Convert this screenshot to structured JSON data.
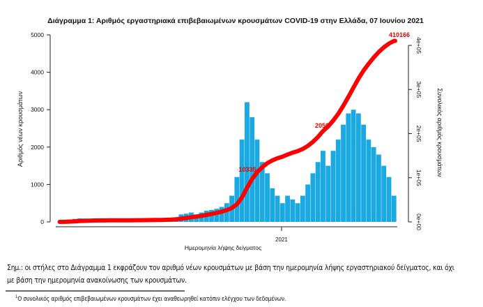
{
  "chart_data": {
    "type": "bar+line",
    "title": "Διάγραμμα 1: Αριθμός εργαστηριακά επιβεβαιωμένων κρουσμάτων COVID-19 στην Ελλάδα, 07 Ιουνίου 2021",
    "xlabel": "Ημερομηνία λήψης δείγματος",
    "ylabel_left": "Αριθμός νέων κρουσμάτων",
    "ylabel_right": "Συνολικός αριθμός κρουσμάτων",
    "x_ticks": [
      "2021"
    ],
    "y_left_ticks": [
      "0",
      "1000",
      "2000",
      "3000",
      "4000",
      "5000"
    ],
    "y_right_ticks": [
      "0e+00",
      "1e+05",
      "2e+05",
      "3e+05",
      "4e+05"
    ],
    "ylim_left": [
      0,
      5000
    ],
    "ylim_right": [
      0,
      400000
    ],
    "xlim": [
      "2020-02-26",
      "2021-06-07"
    ],
    "bar_color": "#1aa9e0",
    "line_color": "#ff0000",
    "dates": [
      "2020-02-26",
      "2020-03-04",
      "2020-03-11",
      "2020-03-18",
      "2020-03-25",
      "2020-04-01",
      "2020-04-08",
      "2020-04-15",
      "2020-04-22",
      "2020-04-29",
      "2020-05-06",
      "2020-05-13",
      "2020-05-20",
      "2020-05-27",
      "2020-06-03",
      "2020-06-10",
      "2020-06-17",
      "2020-06-24",
      "2020-07-01",
      "2020-07-08",
      "2020-07-15",
      "2020-07-22",
      "2020-07-29",
      "2020-08-05",
      "2020-08-12",
      "2020-08-19",
      "2020-08-26",
      "2020-09-02",
      "2020-09-09",
      "2020-09-16",
      "2020-09-23",
      "2020-09-30",
      "2020-10-07",
      "2020-10-14",
      "2020-10-21",
      "2020-10-28",
      "2020-11-04",
      "2020-11-11",
      "2020-11-18",
      "2020-11-25",
      "2020-12-02",
      "2020-12-09",
      "2020-12-16",
      "2020-12-23",
      "2020-12-30",
      "2021-01-06",
      "2021-01-13",
      "2021-01-20",
      "2021-01-27",
      "2021-02-03",
      "2021-02-10",
      "2021-02-17",
      "2021-02-24",
      "2021-03-03",
      "2021-03-10",
      "2021-03-17",
      "2021-03-24",
      "2021-03-31",
      "2021-04-07",
      "2021-04-14",
      "2021-04-21",
      "2021-04-28",
      "2021-05-05",
      "2021-05-12",
      "2021-05-19",
      "2021-05-26",
      "2021-06-02"
    ],
    "new_cases": [
      5,
      20,
      60,
      80,
      95,
      90,
      60,
      40,
      20,
      15,
      10,
      10,
      8,
      5,
      10,
      10,
      15,
      20,
      15,
      25,
      25,
      30,
      50,
      120,
      200,
      220,
      250,
      200,
      250,
      300,
      320,
      350,
      400,
      500,
      700,
      1200,
      2200,
      3200,
      2800,
      2200,
      1600,
      1300,
      900,
      700,
      500,
      700,
      600,
      500,
      700,
      1000,
      1300,
      1600,
      1900,
      1500,
      1900,
      2200,
      2600,
      2900,
      3000,
      2900,
      2600,
      2200,
      2000,
      1800,
      1500,
      1200,
      700
    ],
    "cumulative": [
      35,
      175,
      595,
      1155,
      1820,
      2450,
      2870,
      3150,
      3290,
      3395,
      3465,
      3535,
      3591,
      3626,
      3696,
      3766,
      3871,
      4011,
      4116,
      4291,
      4466,
      4676,
      5026,
      5866,
      7266,
      8806,
      10556,
      11956,
      13706,
      15806,
      18046,
      20496,
      23296,
      26796,
      31696,
      40096,
      55496,
      77896,
      97496,
      112896,
      124096,
      133196,
      139496,
      144396,
      147896,
      152796,
      156996,
      160496,
      165396,
      172396,
      181496,
      192696,
      205996,
      216496,
      229796,
      245196,
      263396,
      283696,
      304696,
      324996,
      343196,
      358596,
      372596,
      385196,
      395696,
      404096,
      410166
    ],
    "annotations": [
      {
        "date": "2020-11-20",
        "text": "10335"
      },
      {
        "date": "2021-02-24",
        "text": "2050"
      },
      {
        "date": "2021-06-07",
        "text": "410166"
      }
    ]
  },
  "notes": {
    "line1": "Σημ.: οι στήλες στο Διάγραμμα 1 εκφράζουν τον αριθμό νέων κρουσμάτων με βάση την ημερομηνία λήψης εργαστηριακού δείγματος, και όχι",
    "line2": "με βάση την ημερομηνία ανακοίνωσης των κρουσμάτων.",
    "footnote_mark": "1",
    "footnote": "Ο συνολικός αριθμός επιβεβαιωμένων κρουσμάτων έχει αναθεωρηθεί κατόπιν ελέγχου των δεδομένων."
  }
}
